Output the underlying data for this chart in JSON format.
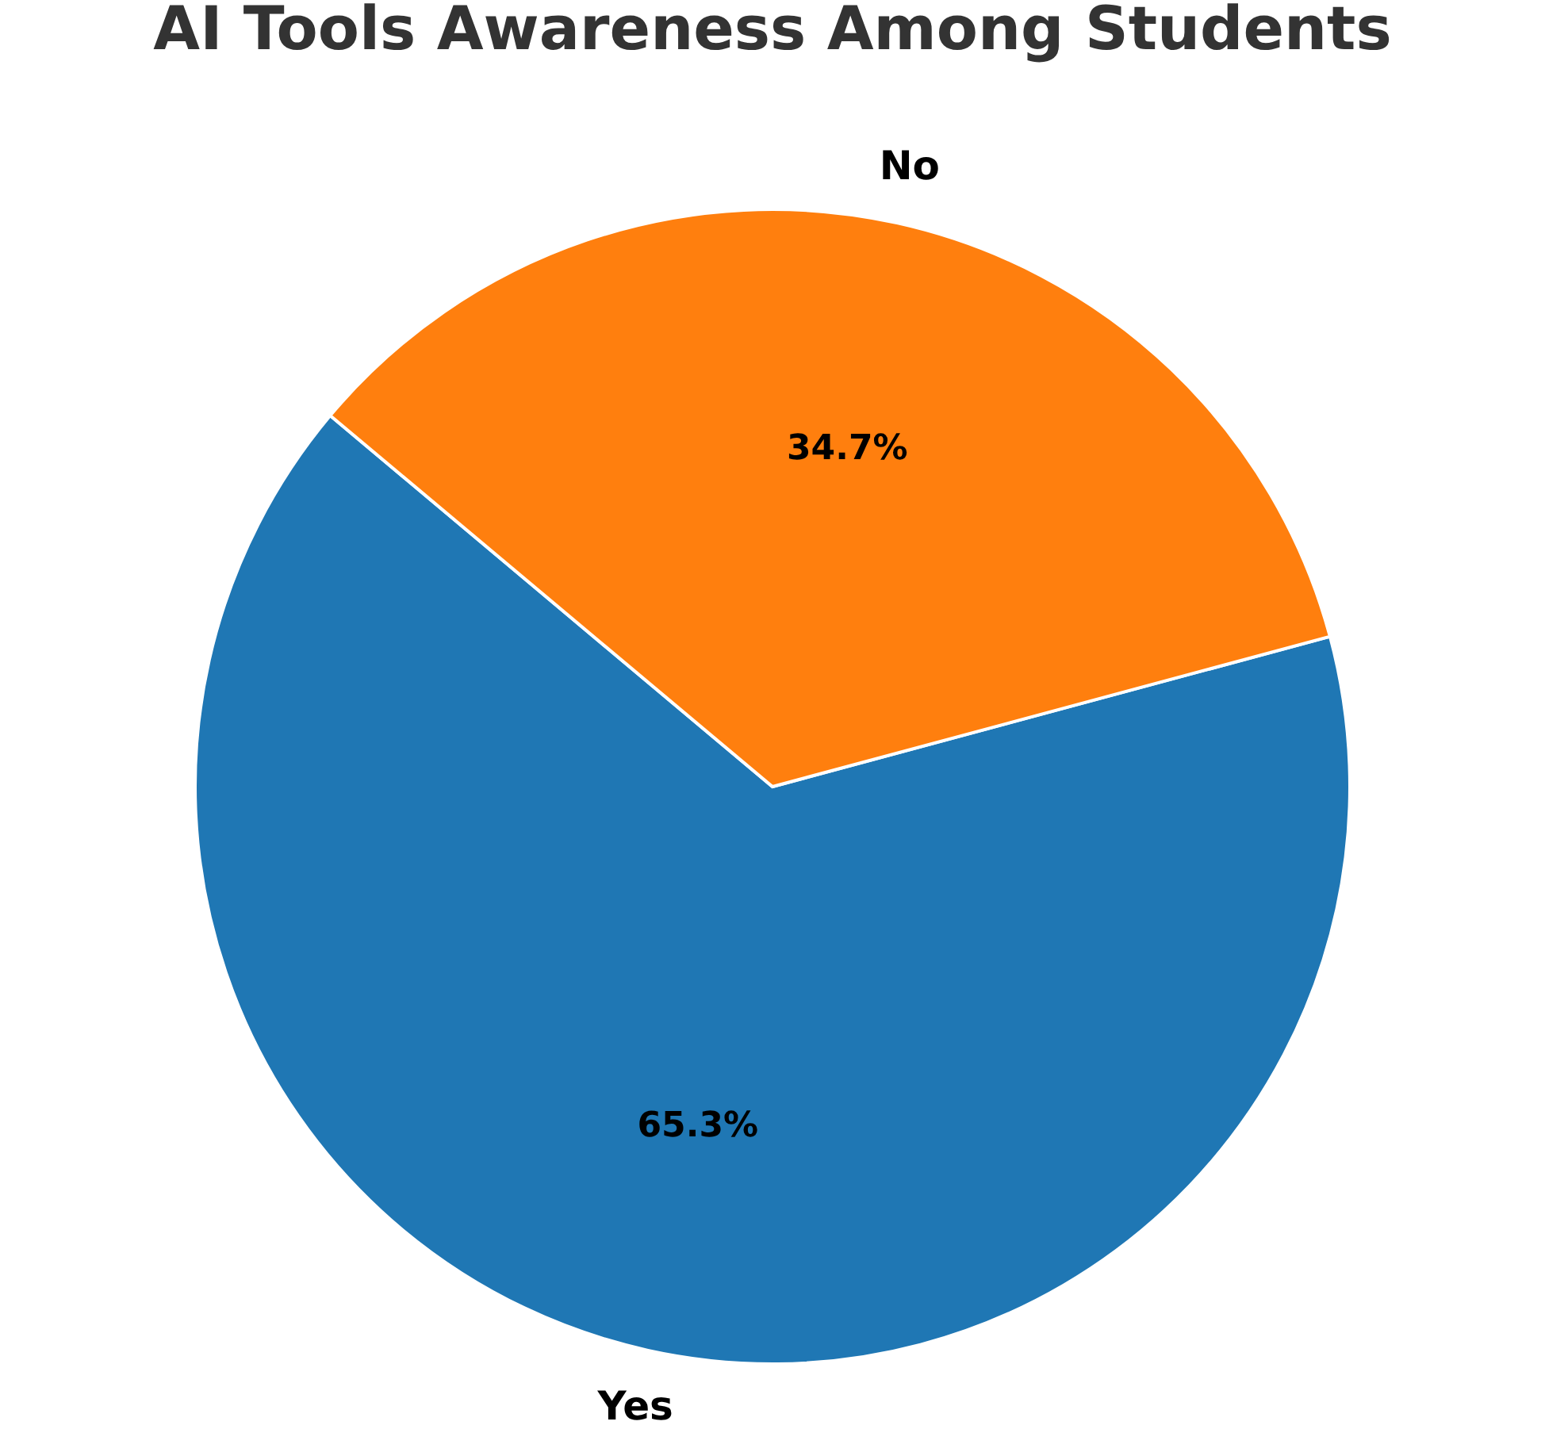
{
  "chart_data": {
    "type": "pie",
    "title": "AI Tools Awareness Among Students",
    "categories": [
      "Yes",
      "No"
    ],
    "values": [
      65.3,
      34.7
    ],
    "colors": [
      "#1f77b4",
      "#ff7f0e"
    ],
    "value_labels": [
      "65.3%",
      "34.7%"
    ]
  }
}
